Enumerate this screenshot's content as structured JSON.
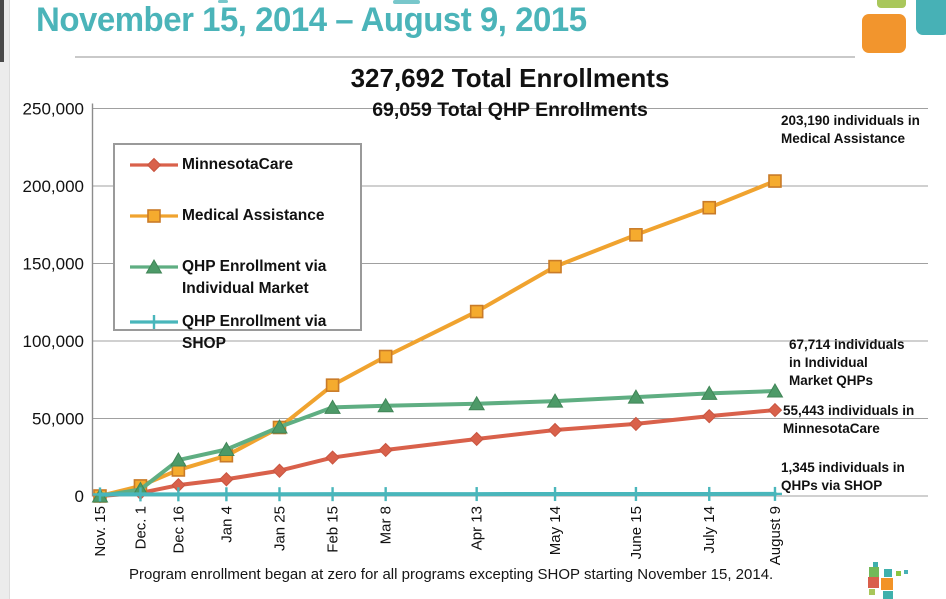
{
  "page": {
    "header_title": "November 15, 2014 – August 9, 2015",
    "footer_note": "Program enrollment began at zero for all programs excepting SHOP starting November 15, 2014.",
    "accent_teal": "#4bb4b9"
  },
  "chart_data": {
    "type": "line",
    "title": "327,692 Total Enrollments",
    "subtitle": "69,059 Total QHP Enrollments",
    "categories": [
      "Nov. 15",
      "Dec. 1",
      "Dec 16",
      "Jan 4",
      "Jan 25",
      "Feb 15",
      "Mar 8",
      "Apr 13",
      "May 14",
      "June 15",
      "July 14",
      "August 9"
    ],
    "x_days": [
      0,
      16,
      31,
      50,
      71,
      92,
      113,
      149,
      180,
      212,
      241,
      267
    ],
    "ylim": [
      0,
      250000
    ],
    "ytick_step": 50000,
    "ytick_labels": [
      "0",
      "50,000",
      "100,000",
      "150,000",
      "200,000",
      "250,000"
    ],
    "grid": true,
    "legend_position": "upper-left",
    "series": [
      {
        "name": "MinnesotaCare",
        "color": "#d9614b",
        "marker": "diamond",
        "marker_fill": "#d9614b",
        "marker_border": "#c85540",
        "values": [
          0,
          2000,
          7000,
          10800,
          16300,
          24800,
          29700,
          36800,
          42600,
          46500,
          51500,
          55443
        ],
        "final_value": 55443
      },
      {
        "name": "Medical Assistance",
        "color": "#f0a32f",
        "marker": "square",
        "marker_fill": "#f5ab2e",
        "marker_border": "#c97b28",
        "values": [
          0,
          6500,
          16800,
          26000,
          44200,
          71500,
          90000,
          119000,
          148000,
          168500,
          186000,
          203190
        ],
        "final_value": 203190
      },
      {
        "name": "QHP Enrollment via Individual Market",
        "color": "#5fae82",
        "marker": "triangle",
        "marker_fill": "#4d9a68",
        "marker_border": "#418557",
        "values": [
          0,
          4200,
          23200,
          30000,
          44500,
          57200,
          58200,
          59500,
          61200,
          63800,
          66200,
          67714
        ],
        "final_value": 67714
      },
      {
        "name": "QHP Enrollment via SHOP",
        "color": "#49b6bb",
        "marker": "plus",
        "marker_fill": "#49b6bb",
        "marker_border": "#49b6bb",
        "values": [
          1000,
          1040,
          1080,
          1110,
          1150,
          1190,
          1220,
          1250,
          1280,
          1305,
          1328,
          1345
        ],
        "final_value": 1345
      }
    ],
    "annotations": [
      {
        "text": "203,190 individuals in\nMedical Assistance"
      },
      {
        "text": "67,714 individuals\nin Individual\nMarket QHPs"
      },
      {
        "text": "55,443 individuals in\nMinnesotaCare"
      },
      {
        "text": "1,345 individuals in\nQHPs via SHOP"
      }
    ]
  }
}
